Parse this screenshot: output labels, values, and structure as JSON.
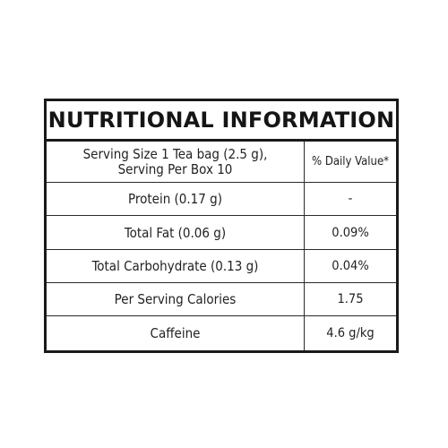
{
  "title": "NUTRITIONAL INFORMATION",
  "header": {
    "serving_line1": "Serving Size 1 Tea bag (2.5 g),",
    "serving_line2": "Serving Per Box 10",
    "daily_value": "% Daily Value*"
  },
  "rows": [
    {
      "label": "Protein (0.17 g)",
      "value": "-"
    },
    {
      "label": "Total Fat (0.06 g)",
      "value": "0.09%"
    },
    {
      "label": "Total Carbohydrate (0.13 g)",
      "value": "0.04%"
    },
    {
      "label": "Per Serving Calories",
      "value": "1.75"
    },
    {
      "label": "Caffeine",
      "value": "4.6 g/kg"
    }
  ]
}
